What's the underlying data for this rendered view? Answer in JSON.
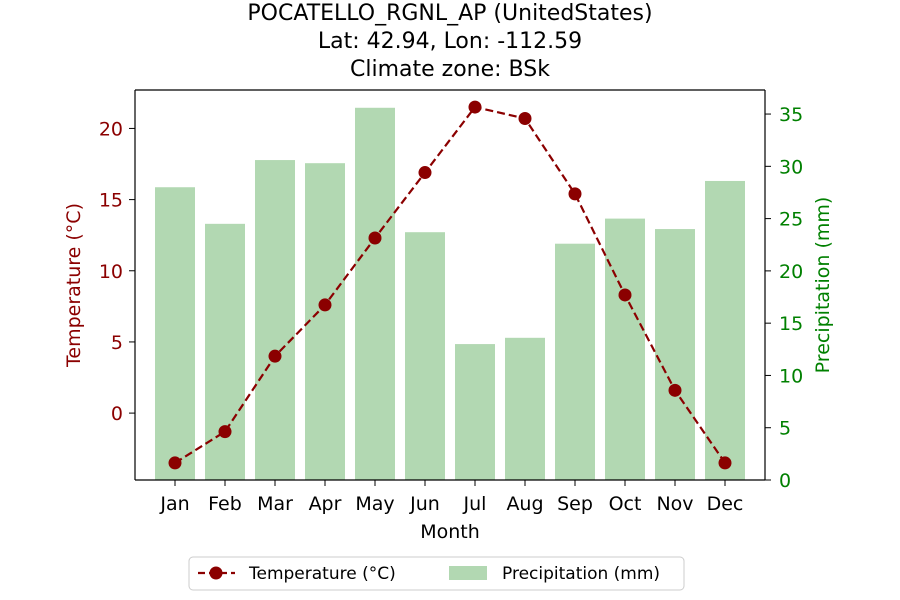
{
  "chart_data": {
    "type": "bar+line",
    "title_lines": [
      "POCATELLO_RGNL_AP (UnitedStates)",
      "Lat: 42.94, Lon: -112.59",
      "Climate zone: BSk"
    ],
    "xlabel": "Month",
    "ylabel_left": "Temperature (°C)",
    "ylabel_right": "Precipitation (mm)",
    "categories": [
      "Jan",
      "Feb",
      "Mar",
      "Apr",
      "May",
      "Jun",
      "Jul",
      "Aug",
      "Sep",
      "Oct",
      "Nov",
      "Dec"
    ],
    "left_axis": {
      "ylim": [
        -4.7,
        22.7
      ],
      "ticks": [
        0,
        5,
        10,
        15,
        20
      ],
      "color": "#8b0000"
    },
    "right_axis": {
      "ylim": [
        0,
        37.3
      ],
      "ticks": [
        0,
        5,
        10,
        15,
        20,
        25,
        30,
        35
      ],
      "color": "#008000"
    },
    "series": [
      {
        "name": "Temperature (°C)",
        "kind": "line",
        "axis": "left",
        "color": "#8b0000",
        "values": [
          -3.5,
          -1.3,
          4.0,
          7.6,
          12.3,
          16.9,
          21.5,
          20.7,
          15.4,
          8.3,
          1.6,
          -3.5
        ]
      },
      {
        "name": "Precipitation (mm)",
        "kind": "bar",
        "axis": "right",
        "color": "#b2d8b2",
        "values": [
          28.0,
          24.5,
          30.6,
          30.3,
          35.6,
          23.7,
          13.0,
          13.6,
          22.6,
          25.0,
          24.0,
          28.6
        ]
      }
    ],
    "legend_placement": "bottom-center",
    "grid": false
  }
}
